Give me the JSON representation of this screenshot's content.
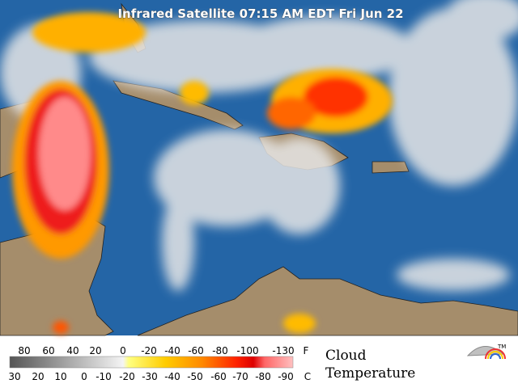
{
  "header": {
    "title": "Infrared Satellite 07:15 AM EDT Fri Jun 22"
  },
  "legend": {
    "fahrenheit_labels": [
      "80",
      "60",
      "40",
      "20",
      "0",
      "-20",
      "-40",
      "-60",
      "-80",
      "-100",
      "-130"
    ],
    "fahrenheit_unit": "F",
    "celsius_labels": [
      "30",
      "20",
      "10",
      "0",
      "-10",
      "-20",
      "-30",
      "-40",
      "-50",
      "-60",
      "-70",
      "-80",
      "-90"
    ],
    "celsius_unit": "C",
    "caption_line1": "Cloud",
    "caption_line2": "Temperature",
    "logo_mark": "TM"
  }
}
